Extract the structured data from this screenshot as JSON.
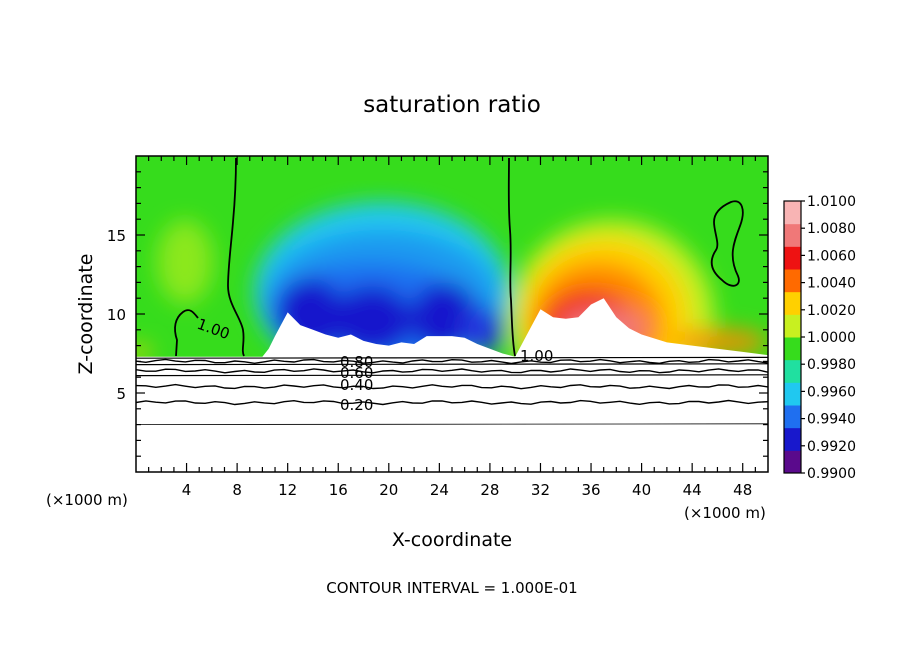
{
  "chart_data": {
    "type": "contour",
    "title": "saturation ratio",
    "xlabel": "X-coordinate",
    "ylabel": "Z-coordinate",
    "x_unit_left": "(×1000 m)",
    "x_unit_right": "(×1000 m)",
    "footer": "CONTOUR INTERVAL = 1.000E-01",
    "xlim": [
      0,
      50
    ],
    "ylim": [
      0,
      20
    ],
    "x_ticks": [
      4,
      8,
      12,
      16,
      20,
      24,
      28,
      32,
      36,
      40,
      44,
      48
    ],
    "y_ticks": [
      5,
      10,
      15
    ],
    "colorbar": {
      "levels": [
        "0.9900",
        "0.9920",
        "0.9940",
        "0.9960",
        "0.9980",
        "1.0000",
        "1.0020",
        "1.0040",
        "1.0060",
        "1.0080",
        "1.0100"
      ],
      "colors": [
        "#5a0a8c",
        "#1818cc",
        "#1f6ff0",
        "#20c8f0",
        "#20e0a0",
        "#36dc1c",
        "#c8f020",
        "#ffd000",
        "#ff6a00",
        "#ee1212",
        "#f07878",
        "#f8b4b4"
      ]
    },
    "contour_labels": [
      "1.00",
      "1.00",
      "0.80",
      "0.60",
      "0.40",
      "0.20"
    ],
    "terrain_profile": {
      "x": [
        0,
        2,
        4,
        6,
        8,
        10,
        10.5,
        11,
        12,
        13,
        14,
        15,
        16,
        17,
        18,
        19,
        20,
        21,
        22,
        23,
        24,
        25,
        26,
        27,
        28,
        29,
        30,
        31,
        32,
        33,
        34,
        35,
        36,
        37,
        38,
        39,
        40,
        42,
        44,
        46,
        48,
        50
      ],
      "z": [
        7.3,
        7.3,
        7.3,
        7.3,
        7.3,
        7.3,
        7.8,
        8.6,
        10.1,
        9.3,
        9.0,
        8.7,
        8.5,
        8.7,
        8.3,
        8.1,
        8.0,
        8.2,
        8.1,
        8.6,
        8.6,
        8.6,
        8.5,
        8.1,
        7.8,
        7.5,
        7.3,
        8.8,
        10.3,
        9.8,
        9.7,
        9.8,
        10.6,
        11.0,
        9.8,
        9.1,
        8.7,
        8.2,
        8.0,
        7.8,
        7.6,
        7.4
      ]
    },
    "low_level_contours": {
      "levels": [
        0.2,
        0.4,
        0.6,
        0.8
      ],
      "z": [
        4.4,
        5.4,
        6.4,
        7.0
      ]
    }
  }
}
